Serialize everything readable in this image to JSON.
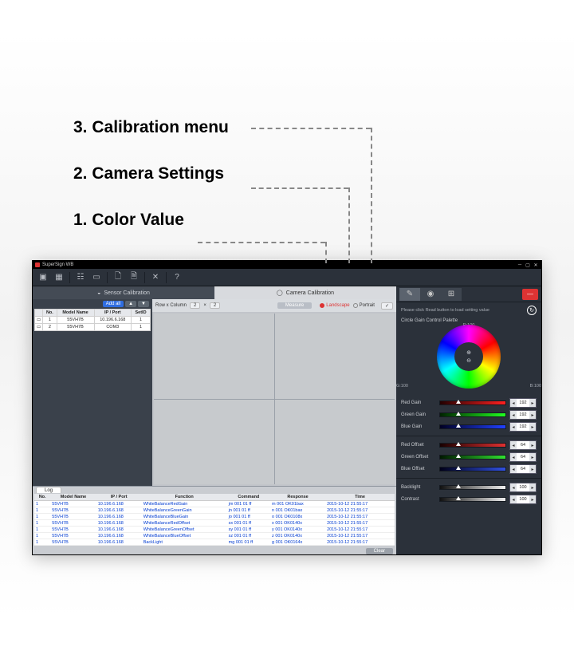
{
  "callouts": [
    "1. Color Value",
    "2. Camera Settings",
    "3. Calibration menu"
  ],
  "window": {
    "title": "SuperSign WB"
  },
  "tabs": [
    "Sensor Calibration",
    "Camera Calibration"
  ],
  "device_panel": {
    "add_all": "Add all",
    "columns": [
      "No.",
      "Model Name",
      "IP / Port",
      "SetID"
    ],
    "rows": [
      {
        "no": "1",
        "model": "55VH7B",
        "ip": "10.196.6.168",
        "setid": "1"
      },
      {
        "no": "2",
        "model": "55VH7B",
        "ip": "COM3",
        "setid": "1"
      }
    ]
  },
  "preview": {
    "rowcol_label": "Row x Column",
    "rows": "2",
    "cols": "2",
    "measure": "Measure",
    "orient": [
      "Landscape",
      "Portrait"
    ],
    "apply": "✓"
  },
  "log": {
    "tab": "Log",
    "clear": "Clear",
    "columns": [
      "No.",
      "Model Name",
      "IP / Port",
      "Function",
      "Command",
      "Response",
      "Time"
    ],
    "rows": [
      [
        "1",
        "55VH7B",
        "10.196.6.168",
        "WhiteBalanceRedGain",
        "jm 001 01 ff",
        "m 001 OK01bax",
        "2015-10-12 21:55:17"
      ],
      [
        "1",
        "55VH7B",
        "10.196.6.168",
        "WhiteBalanceGreenGain",
        "jn 001 01 ff",
        "n 001 OK01bax",
        "2015-10-12 21:55:17"
      ],
      [
        "1",
        "55VH7B",
        "10.196.6.168",
        "WhiteBalanceBlueGain",
        "jo 001 01 ff",
        "o 001 OK0108x",
        "2015-10-12 21:55:17"
      ],
      [
        "1",
        "55VH7B",
        "10.196.6.168",
        "WhiteBalanceRedOffset",
        "sx 001 01 ff",
        "x 001 OK0140x",
        "2015-10-12 21:55:17"
      ],
      [
        "1",
        "55VH7B",
        "10.196.6.168",
        "WhiteBalanceGreenOffset",
        "sy 001 01 ff",
        "y 001 OK0140x",
        "2015-10-12 21:55:17"
      ],
      [
        "1",
        "55VH7B",
        "10.196.6.168",
        "WhiteBalanceBlueOffset",
        "sz 001 01 ff",
        "z 001 OK0140x",
        "2015-10-12 21:55:17"
      ],
      [
        "1",
        "55VH7B",
        "10.196.6.168",
        "BackLight",
        "mg 001 01 ff",
        "g 001 OK0164x",
        "2015-10-12 21:55:17"
      ]
    ]
  },
  "color_panel": {
    "read_hint": "Please click Read button to load setting value",
    "palette_label": "Circle Gain Control Palette",
    "axes": {
      "top": "R:100",
      "left": "G:100",
      "right": "B:100"
    },
    "sliders": [
      {
        "label": "Red Gain",
        "value": "192",
        "gradient": [
          "#230000",
          "#ff2020"
        ],
        "sep_after": false
      },
      {
        "label": "Green Gain",
        "value": "192",
        "gradient": [
          "#002300",
          "#20ff20"
        ],
        "sep_after": false
      },
      {
        "label": "Blue Gain",
        "value": "192",
        "gradient": [
          "#000023",
          "#2040ff"
        ],
        "sep_after": true
      },
      {
        "label": "Red Offset",
        "value": "64",
        "gradient": [
          "#180000",
          "#e03030"
        ],
        "sep_after": false
      },
      {
        "label": "Green Offset",
        "value": "64",
        "gradient": [
          "#001800",
          "#30e030"
        ],
        "sep_after": false
      },
      {
        "label": "Blue Offset",
        "value": "64",
        "gradient": [
          "#000018",
          "#3050e0"
        ],
        "sep_after": true
      },
      {
        "label": "Backlight",
        "value": "100",
        "gradient": [
          "#111111",
          "#eeeeee"
        ],
        "sep_after": false
      },
      {
        "label": "Contrast",
        "value": "100",
        "gradient": [
          "#111111",
          "#eeeeee"
        ],
        "sep_after": false
      }
    ]
  }
}
